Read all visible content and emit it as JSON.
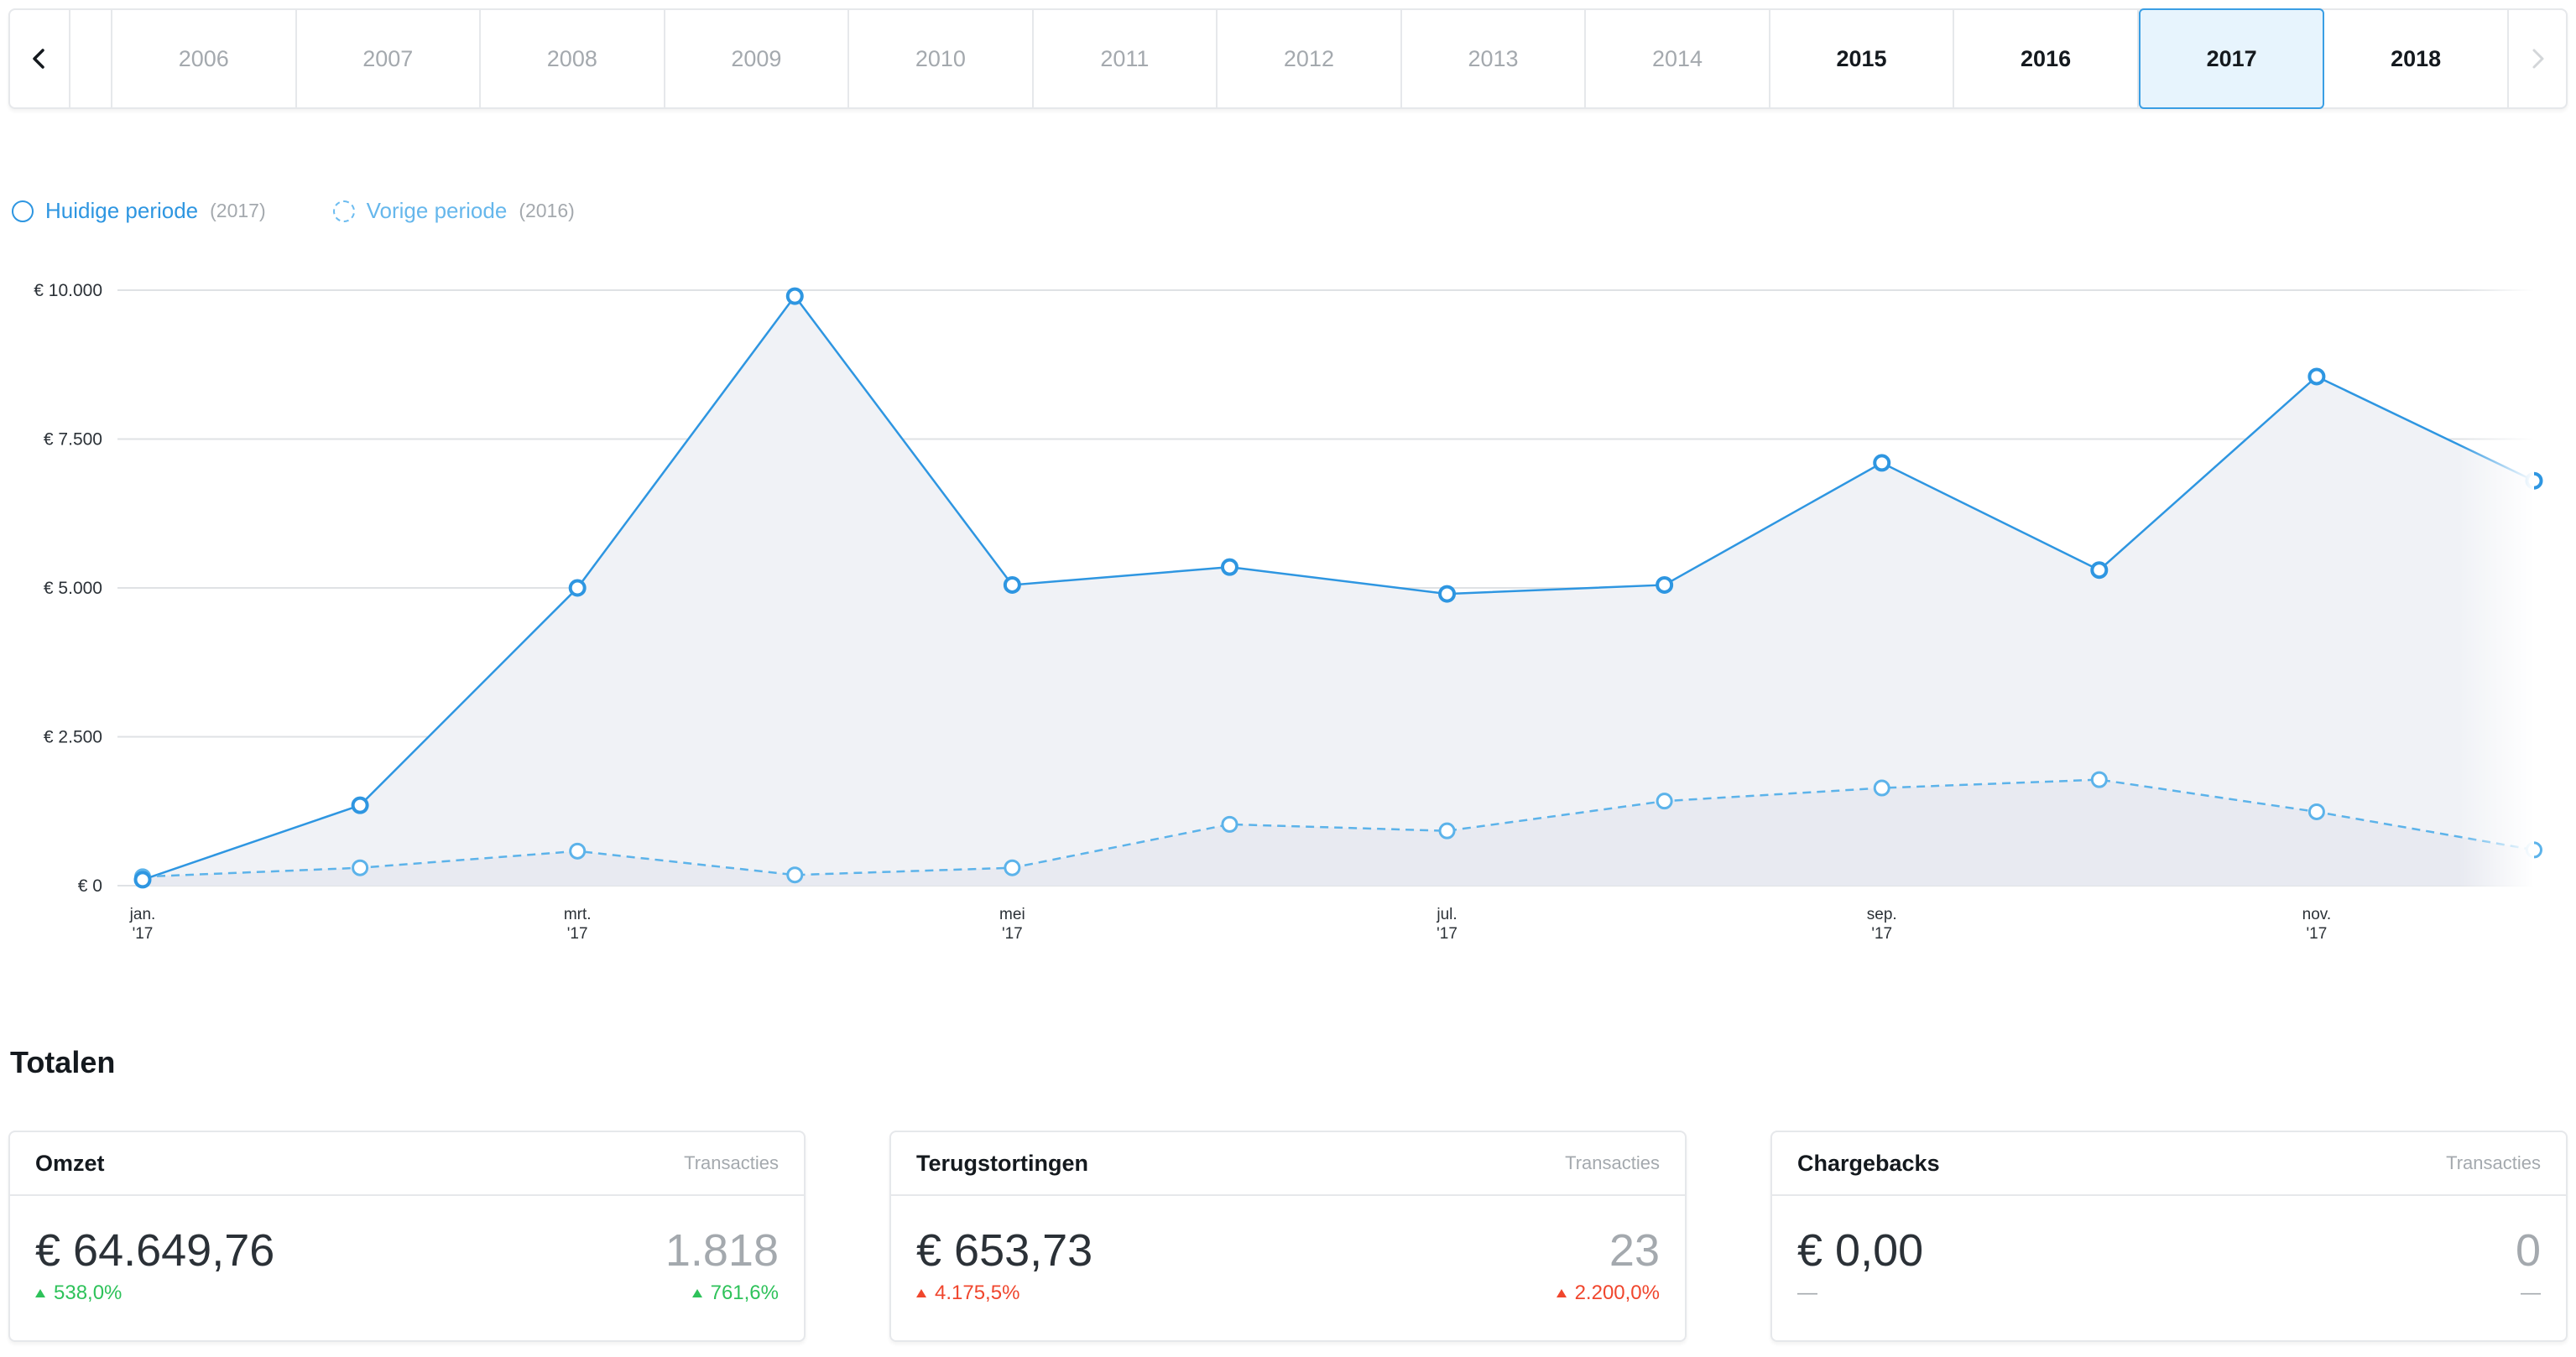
{
  "yearbar": {
    "prev_icon": "chevron-left-icon",
    "next_icon": "chevron-right-icon",
    "years": [
      {
        "label": "2006",
        "state": "disabled"
      },
      {
        "label": "2007",
        "state": "disabled"
      },
      {
        "label": "2008",
        "state": "disabled"
      },
      {
        "label": "2009",
        "state": "disabled"
      },
      {
        "label": "2010",
        "state": "disabled"
      },
      {
        "label": "2011",
        "state": "disabled"
      },
      {
        "label": "2012",
        "state": "disabled"
      },
      {
        "label": "2013",
        "state": "disabled"
      },
      {
        "label": "2014",
        "state": "disabled"
      },
      {
        "label": "2015",
        "state": "enabled"
      },
      {
        "label": "2016",
        "state": "enabled"
      },
      {
        "label": "2017",
        "state": "selected"
      },
      {
        "label": "2018",
        "state": "enabled"
      }
    ]
  },
  "legend": {
    "current_label": "Huidige periode",
    "current_year": "(2017)",
    "previous_label": "Vorige periode",
    "previous_year": "(2016)"
  },
  "chart_data": {
    "type": "area",
    "y_ticks": [
      "€ 10.000",
      "€ 7.500",
      "€ 5.000",
      "€ 2.500",
      "€ 0"
    ],
    "y_tick_values": [
      10000,
      7500,
      5000,
      2500,
      0
    ],
    "ylim": [
      0,
      10000
    ],
    "x_tick_labels": [
      {
        "index": 0,
        "line1": "jan.",
        "line2": "'17"
      },
      {
        "index": 2,
        "line1": "mrt.",
        "line2": "'17"
      },
      {
        "index": 4,
        "line1": "mei",
        "line2": "'17"
      },
      {
        "index": 6,
        "line1": "jul.",
        "line2": "'17"
      },
      {
        "index": 8,
        "line1": "sep.",
        "line2": "'17"
      },
      {
        "index": 10,
        "line1": "nov.",
        "line2": "'17"
      }
    ],
    "grid": true,
    "series": [
      {
        "name": "Huidige periode",
        "style": "solid",
        "color": "#2e96e1",
        "values": [
          100,
          1350,
          5000,
          9900,
          5050,
          5350,
          4900,
          5050,
          7100,
          5300,
          8550,
          6800
        ]
      },
      {
        "name": "Vorige periode",
        "style": "dashed",
        "color": "#5cb3ea",
        "values": [
          150,
          300,
          580,
          180,
          300,
          1030,
          920,
          1420,
          1640,
          1780,
          1240,
          600
        ]
      }
    ]
  },
  "totals": {
    "title": "Totalen",
    "cards": [
      {
        "name": "Omzet",
        "sub": "Transacties",
        "amount": "€ 64.649,76",
        "amount_change": "538,0%",
        "count": "1.818",
        "count_change": "761,6%",
        "trend": "up-green"
      },
      {
        "name": "Terugstortingen",
        "sub": "Transacties",
        "amount": "€ 653,73",
        "amount_change": "4.175,5%",
        "count": "23",
        "count_change": "2.200,0%",
        "trend": "up-red"
      },
      {
        "name": "Chargebacks",
        "sub": "Transacties",
        "amount": "€ 0,00",
        "amount_change": "—",
        "count": "0",
        "count_change": "—",
        "trend": "neutral"
      }
    ]
  }
}
